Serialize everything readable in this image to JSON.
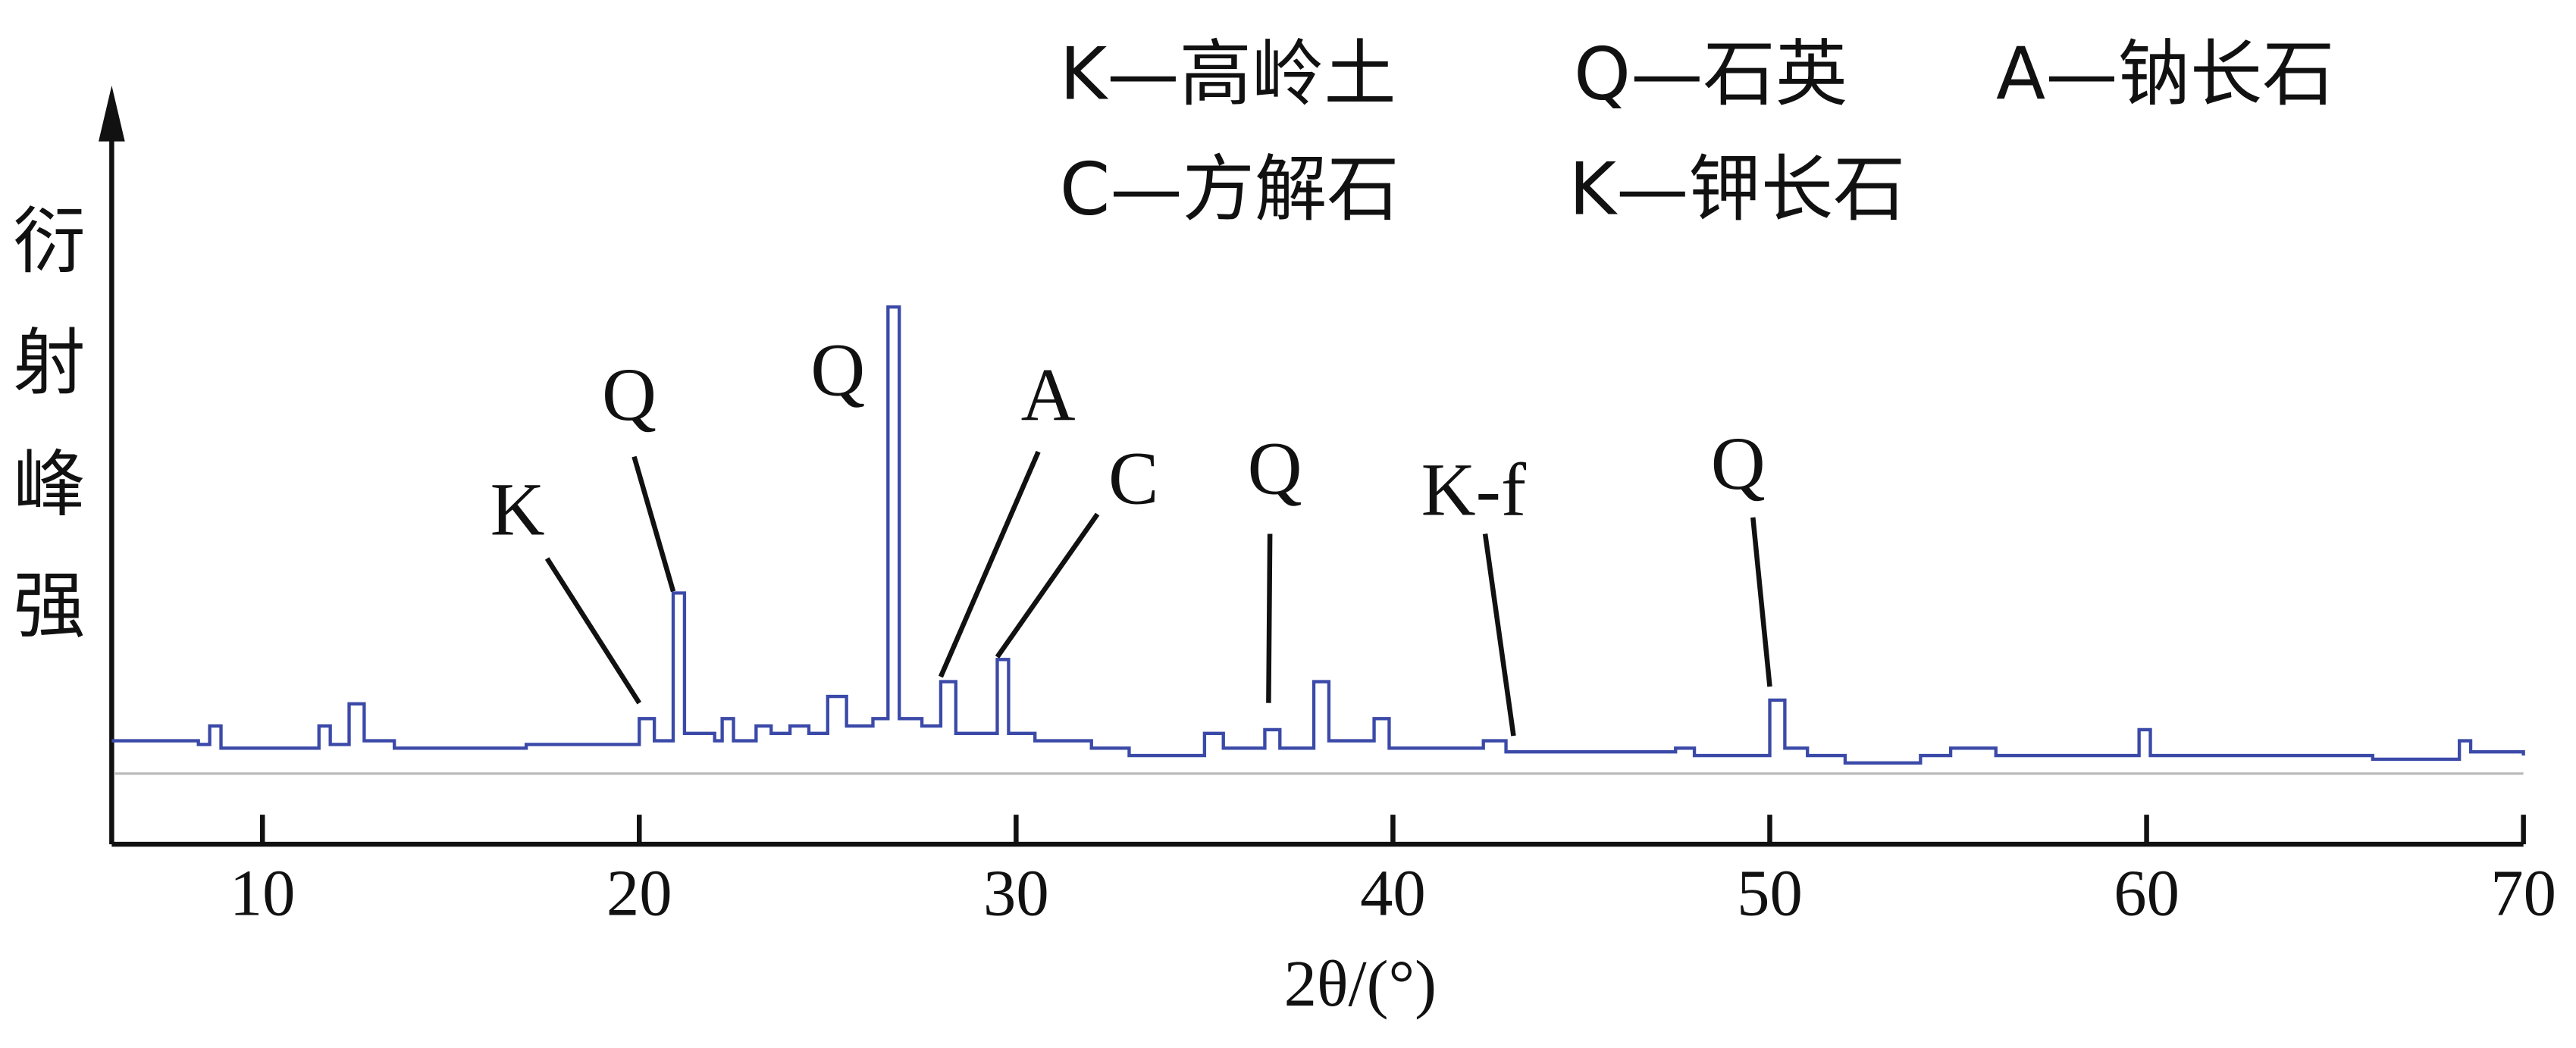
{
  "chart_data": {
    "type": "line",
    "legend_lines": [
      [
        "K—高岭土",
        "Q—石英",
        "A—钠长石"
      ],
      [
        "C—方解石",
        "K—钾长石"
      ]
    ],
    "y_label": "衍射峰强",
    "x_label": "2θ/(°)",
    "xlim": [
      6,
      70
    ],
    "xticks": [
      10,
      20,
      30,
      40,
      50,
      60,
      70
    ],
    "ylim": [
      0,
      100
    ],
    "series": [
      {
        "color": "#3b4aa8",
        "x": [
          6.0,
          8.3,
          8.6,
          8.9,
          11.0,
          11.5,
          11.8,
          12.3,
          12.7,
          13.5,
          17.0,
          19.5,
          20.0,
          20.4,
          20.9,
          21.2,
          22.0,
          22.2,
          22.5,
          23.1,
          23.5,
          24.0,
          24.5,
          25.0,
          25.5,
          26.2,
          26.6,
          26.9,
          27.5,
          28.0,
          28.4,
          29.2,
          29.5,
          29.8,
          30.5,
          32.0,
          33.0,
          35.0,
          35.5,
          36.6,
          37.0,
          37.9,
          38.3,
          39.5,
          39.9,
          42.4,
          43.0,
          45.0,
          47.5,
          48.0,
          50.0,
          50.4,
          51.0,
          52.0,
          54.0,
          54.8,
          56.0,
          59.8,
          60.1,
          62.0,
          64.0,
          66.0,
          67.0,
          68.3,
          68.6,
          70.0
        ],
        "values": [
          14,
          13.5,
          16,
          13,
          13,
          16,
          13.5,
          19,
          14,
          13,
          13.5,
          13.5,
          17,
          14,
          34,
          15,
          14,
          17,
          14,
          16,
          15,
          16,
          15,
          20,
          16,
          17,
          72.7,
          17,
          16,
          22,
          15,
          15,
          25,
          15,
          14,
          13,
          12,
          15,
          13,
          15.5,
          13,
          22,
          14,
          17,
          13,
          14,
          12.5,
          12.5,
          13,
          12,
          19.5,
          13,
          12,
          11,
          12,
          13,
          12,
          15.5,
          12,
          12,
          12,
          11.5,
          11.5,
          14,
          12.5,
          12
        ]
      }
    ],
    "annotations": [
      {
        "text": "K",
        "x": 20.0
      },
      {
        "text": "Q",
        "x": 20.9
      },
      {
        "text": "Q",
        "x": 26.6
      },
      {
        "text": "A",
        "x": 28.0
      },
      {
        "text": "C",
        "x": 29.5
      },
      {
        "text": "Q",
        "x": 36.7
      },
      {
        "text": "K-f",
        "x": 43.2
      },
      {
        "text": "Q",
        "x": 50.0
      }
    ]
  }
}
